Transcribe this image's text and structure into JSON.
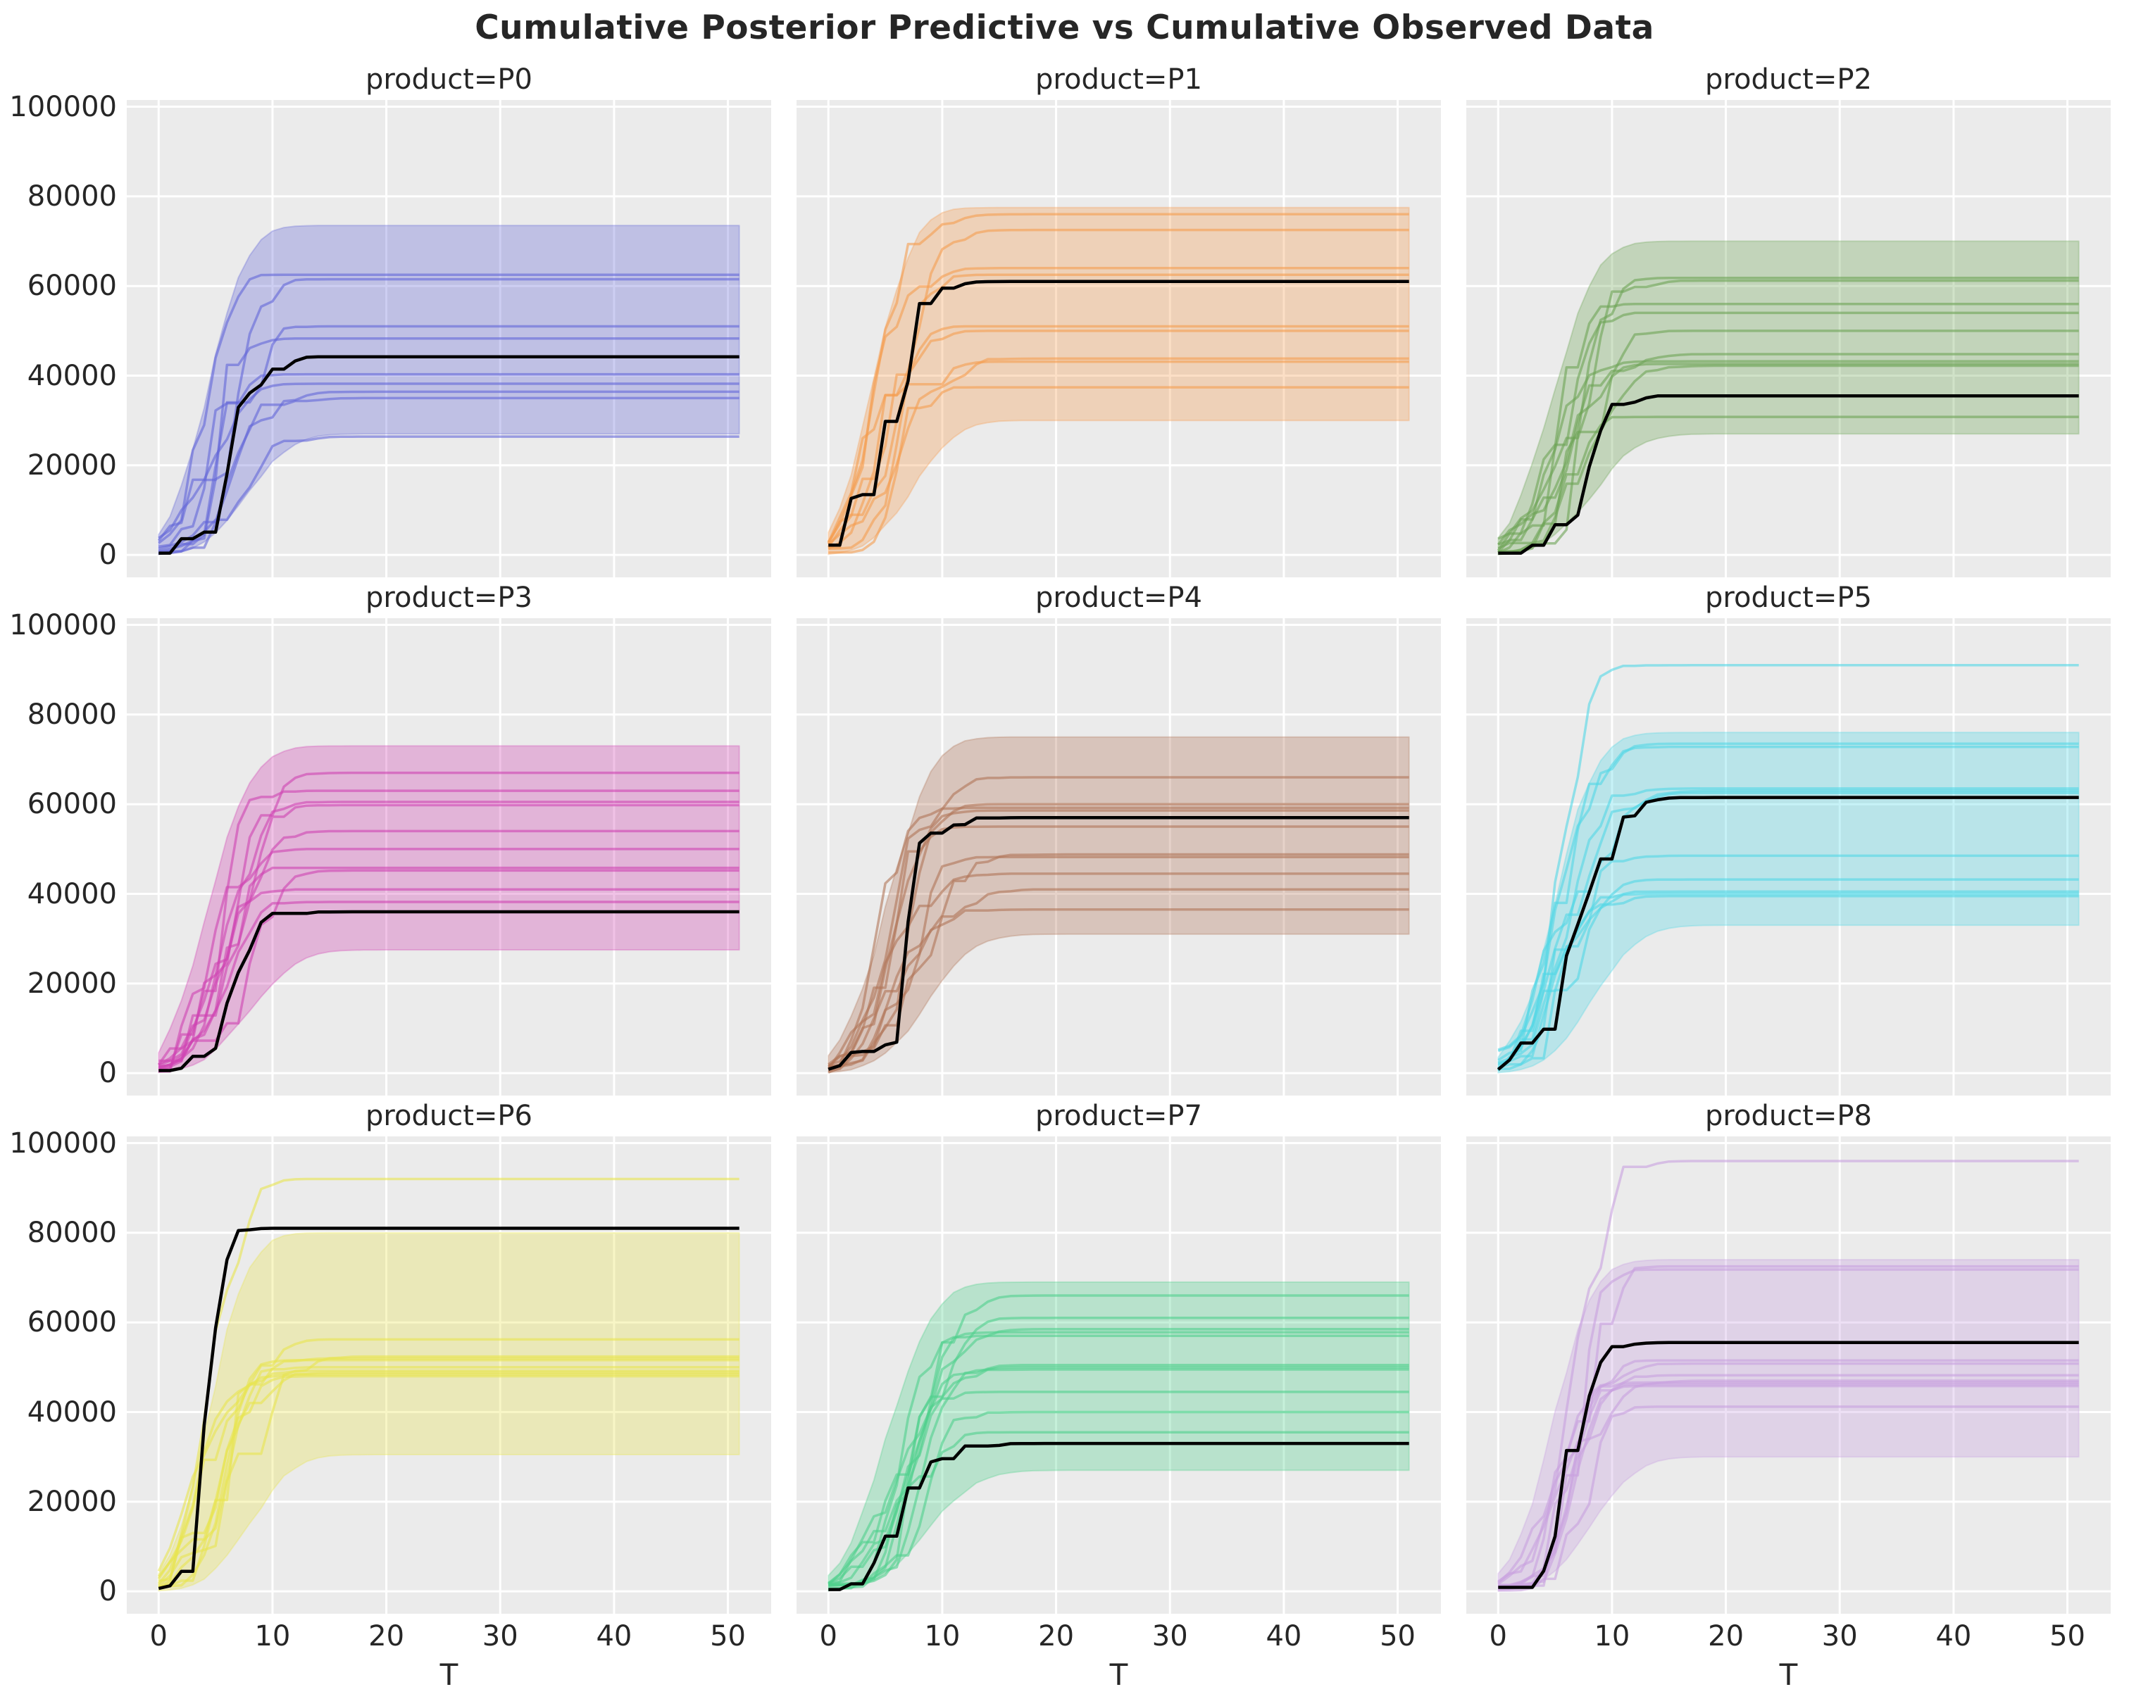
{
  "title": "Cumulative Posterior Predictive vs Cumulative Observed Data",
  "chart_data": {
    "type": "line",
    "title": "Cumulative Posterior Predictive vs Cumulative Observed Data",
    "xlabel": "T",
    "x_range": [
      0,
      51
    ],
    "xlim": [
      -2.8,
      53.8
    ],
    "ylim": [
      -5000,
      101500
    ],
    "x_ticks": [
      0,
      10,
      20,
      30,
      40,
      50
    ],
    "y_ticks": [
      0,
      20000,
      40000,
      60000,
      80000,
      100000
    ],
    "grid": true,
    "legend": "none",
    "plot_bg": "#ebebeb",
    "grid_color": "#ffffff",
    "observed_color": "#000000",
    "series_meaning": {
      "band": "min-max envelope of posterior predictive cumulative draws",
      "samples": "individual posterior predictive cumulative trajectories",
      "observed": "cumulative observed data (black line)"
    },
    "panels": [
      {
        "product": "P0",
        "title": "product=P0",
        "color": "#6366d8",
        "band": {
          "lower": 27000,
          "upper": 73500
        },
        "observed": {
          "plateau": 44200,
          "rise_mu": 6.5,
          "rise_sig": 2.6
        },
        "rise": {
          "mu": 6.0,
          "sig": 2.4
        },
        "sample_plateaus": [
          62500,
          61500,
          51000,
          48300,
          40300,
          38200,
          36400,
          35000,
          26400
        ]
      },
      {
        "product": "P1",
        "title": "product=P1",
        "color": "#f59c4e",
        "band": {
          "lower": 30000,
          "upper": 77500
        },
        "observed": {
          "plateau": 61000,
          "rise_mu": 6.0,
          "rise_sig": 2.4
        },
        "rise": {
          "mu": 5.8,
          "sig": 2.4
        },
        "sample_plateaus": [
          76000,
          72500,
          64000,
          62500,
          51000,
          50000,
          43800,
          43100,
          37400
        ]
      },
      {
        "product": "P2",
        "title": "product=P2",
        "color": "#6da455",
        "band": {
          "lower": 27000,
          "upper": 70000
        },
        "observed": {
          "plateau": 35500,
          "rise_mu": 7.0,
          "rise_sig": 2.8
        },
        "rise": {
          "mu": 6.5,
          "sig": 2.6
        },
        "sample_plateaus": [
          61800,
          61200,
          56000,
          54000,
          50000,
          44800,
          43200,
          42600,
          42200,
          30800
        ]
      },
      {
        "product": "P3",
        "title": "product=P3",
        "color": "#cf42b2",
        "band": {
          "lower": 27500,
          "upper": 73000
        },
        "observed": {
          "plateau": 36000,
          "rise_mu": 6.8,
          "rise_sig": 2.8
        },
        "rise": {
          "mu": 6.2,
          "sig": 2.6
        },
        "sample_plateaus": [
          67000,
          63000,
          60500,
          59800,
          54000,
          50000,
          45800,
          45200,
          41000,
          38200
        ]
      },
      {
        "product": "P4",
        "title": "product=P4",
        "color": "#b07456",
        "band": {
          "lower": 31000,
          "upper": 75000
        },
        "observed": {
          "plateau": 57000,
          "rise_mu": 7.0,
          "rise_sig": 2.6
        },
        "rise": {
          "mu": 6.8,
          "sig": 2.7
        },
        "sample_plateaus": [
          66000,
          60000,
          59200,
          58600,
          55000,
          48800,
          48200,
          44500,
          41000,
          36500
        ]
      },
      {
        "product": "P5",
        "title": "product=P5",
        "color": "#52d7e6",
        "band": {
          "lower": 33000,
          "upper": 76000
        },
        "observed": {
          "plateau": 61500,
          "rise_mu": 7.2,
          "rise_sig": 2.8
        },
        "rise": {
          "mu": 6.8,
          "sig": 2.6
        },
        "sample_plateaus": [
          91000,
          73500,
          72800,
          63500,
          63000,
          62500,
          48500,
          43200,
          40500,
          40000,
          39500
        ]
      },
      {
        "product": "P6",
        "title": "product=P6",
        "color": "#e8e44f",
        "band": {
          "lower": 30500,
          "upper": 80000
        },
        "observed": {
          "plateau": 81000,
          "rise_mu": 4.6,
          "rise_sig": 1.5
        },
        "rise": {
          "mu": 6.3,
          "sig": 2.4
        },
        "sample_plateaus": [
          92000,
          56200,
          52400,
          52000,
          51600,
          50000,
          49200,
          48800,
          48400,
          48000
        ]
      },
      {
        "product": "P7",
        "title": "product=P7",
        "color": "#4fd08c",
        "band": {
          "lower": 27000,
          "upper": 69000
        },
        "observed": {
          "plateau": 33000,
          "rise_mu": 8.0,
          "rise_sig": 3.2
        },
        "rise": {
          "mu": 7.0,
          "sig": 2.8
        },
        "sample_plateaus": [
          66000,
          61000,
          58500,
          57800,
          57000,
          50500,
          50000,
          49500,
          44500,
          40000,
          35500
        ]
      },
      {
        "product": "P8",
        "title": "product=P8",
        "color": "#c8a0e0",
        "band": {
          "lower": 30000,
          "upper": 74000
        },
        "observed": {
          "plateau": 55500,
          "rise_mu": 6.2,
          "rise_sig": 2.4
        },
        "rise": {
          "mu": 6.5,
          "sig": 2.5
        },
        "sample_plateaus": [
          96000,
          72500,
          71800,
          51500,
          50800,
          48200,
          47000,
          46600,
          46200,
          45800,
          41200
        ]
      }
    ]
  }
}
